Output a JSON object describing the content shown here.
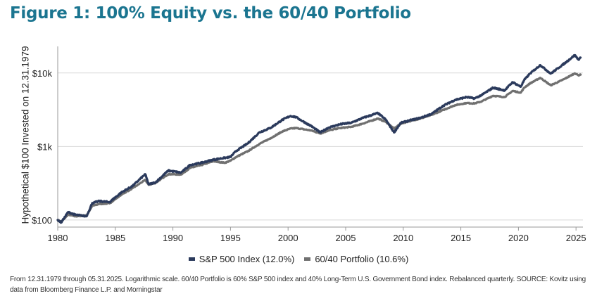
{
  "figure": {
    "title": "Figure 1: 100% Equity vs. the 60/40 Portfolio",
    "footnote": "From 12.31.1979 through 05.31.2025. Logarithmic scale. 60/40 Portfolio is 60% S&P 500 index and 40% Long-Term U.S. Government Bond index. Rebalanced quarterly. SOURCE: Kovitz using data from Bloomberg Finance L.P. and Morningstar"
  },
  "colors": {
    "sp500": "#2b3a5c",
    "sixty_forty": "#707070",
    "grid": "#d9d9d9",
    "title": "#1b7590"
  },
  "chart_data": {
    "type": "line",
    "title": "Figure 1: 100% Equity vs. the 60/40 Portfolio",
    "xlabel": "",
    "ylabel": "Hypothetical $100 Invested on 12.31.1979",
    "yscale": "log",
    "xlim": [
      1980,
      2025.6
    ],
    "ylim": [
      80,
      23000
    ],
    "xticks": [
      1980,
      1985,
      1990,
      1995,
      2000,
      2005,
      2010,
      2015,
      2020,
      2025
    ],
    "xtick_labels": [
      "1980",
      "1985",
      "1990",
      "1995",
      "2000",
      "2005",
      "2010",
      "2015",
      "2020",
      "2025"
    ],
    "yticks": [
      100,
      1000,
      10000
    ],
    "ytick_labels": [
      "$100",
      "$1k",
      "$10k"
    ],
    "legend": "bottom-center",
    "series": [
      {
        "name": "S&P 500 Index (12.0%)",
        "points": [
          [
            1980,
            100
          ],
          [
            1980.3,
            92
          ],
          [
            1980.9,
            128
          ],
          [
            1981.5,
            118
          ],
          [
            1982.5,
            112
          ],
          [
            1983.0,
            170
          ],
          [
            1983.6,
            180
          ],
          [
            1984.5,
            175
          ],
          [
            1985.5,
            235
          ],
          [
            1986.5,
            290
          ],
          [
            1987.6,
            420
          ],
          [
            1987.9,
            305
          ],
          [
            1988.5,
            325
          ],
          [
            1989.6,
            470
          ],
          [
            1990.7,
            440
          ],
          [
            1991.5,
            560
          ],
          [
            1992.5,
            600
          ],
          [
            1993.5,
            660
          ],
          [
            1994.5,
            700
          ],
          [
            1995.0,
            720
          ],
          [
            1995.5,
            870
          ],
          [
            1996.5,
            1100
          ],
          [
            1997.5,
            1550
          ],
          [
            1998.5,
            1800
          ],
          [
            1999.5,
            2300
          ],
          [
            2000.2,
            2600
          ],
          [
            2000.7,
            2500
          ],
          [
            2001.5,
            2100
          ],
          [
            2002.0,
            1900
          ],
          [
            2002.8,
            1550
          ],
          [
            2003.5,
            1800
          ],
          [
            2004.5,
            2000
          ],
          [
            2005.5,
            2100
          ],
          [
            2006.5,
            2450
          ],
          [
            2007.8,
            2850
          ],
          [
            2008.5,
            2300
          ],
          [
            2009.2,
            1550
          ],
          [
            2009.8,
            2100
          ],
          [
            2010.5,
            2250
          ],
          [
            2011.5,
            2450
          ],
          [
            2012.5,
            2800
          ],
          [
            2013.5,
            3600
          ],
          [
            2014.5,
            4300
          ],
          [
            2015.5,
            4700
          ],
          [
            2016.2,
            4500
          ],
          [
            2016.8,
            5000
          ],
          [
            2017.8,
            6300
          ],
          [
            2018.8,
            5800
          ],
          [
            2019.5,
            7500
          ],
          [
            2020.2,
            6500
          ],
          [
            2020.5,
            8000
          ],
          [
            2021.0,
            9800
          ],
          [
            2021.9,
            12800
          ],
          [
            2022.8,
            9800
          ],
          [
            2023.5,
            11800
          ],
          [
            2024.0,
            13500
          ],
          [
            2024.9,
            17500
          ],
          [
            2025.2,
            15200
          ],
          [
            2025.4,
            16200
          ]
        ]
      },
      {
        "name": "60/40 Portfolio (10.6%)",
        "points": [
          [
            1980,
            100
          ],
          [
            1980.3,
            94
          ],
          [
            1980.9,
            118
          ],
          [
            1981.5,
            112
          ],
          [
            1982.5,
            115
          ],
          [
            1983.0,
            155
          ],
          [
            1983.6,
            165
          ],
          [
            1984.5,
            168
          ],
          [
            1985.5,
            220
          ],
          [
            1986.5,
            270
          ],
          [
            1987.6,
            350
          ],
          [
            1987.9,
            300
          ],
          [
            1988.5,
            320
          ],
          [
            1989.6,
            420
          ],
          [
            1990.7,
            415
          ],
          [
            1991.5,
            510
          ],
          [
            1992.5,
            560
          ],
          [
            1993.5,
            630
          ],
          [
            1994.5,
            600
          ],
          [
            1995.0,
            640
          ],
          [
            1995.5,
            720
          ],
          [
            1996.5,
            860
          ],
          [
            1997.5,
            1080
          ],
          [
            1998.5,
            1300
          ],
          [
            1999.5,
            1600
          ],
          [
            2000.2,
            1750
          ],
          [
            2000.7,
            1780
          ],
          [
            2001.5,
            1700
          ],
          [
            2002.0,
            1650
          ],
          [
            2002.8,
            1500
          ],
          [
            2003.5,
            1650
          ],
          [
            2004.5,
            1780
          ],
          [
            2005.5,
            1850
          ],
          [
            2006.5,
            2050
          ],
          [
            2007.8,
            2400
          ],
          [
            2008.5,
            2150
          ],
          [
            2009.2,
            1750
          ],
          [
            2009.8,
            2050
          ],
          [
            2010.5,
            2200
          ],
          [
            2011.5,
            2400
          ],
          [
            2012.5,
            2700
          ],
          [
            2013.5,
            3150
          ],
          [
            2014.5,
            3650
          ],
          [
            2015.5,
            3900
          ],
          [
            2016.2,
            3850
          ],
          [
            2016.8,
            4100
          ],
          [
            2017.8,
            4900
          ],
          [
            2018.8,
            4700
          ],
          [
            2019.5,
            5700
          ],
          [
            2020.2,
            5400
          ],
          [
            2020.5,
            6300
          ],
          [
            2021.0,
            7200
          ],
          [
            2021.9,
            8600
          ],
          [
            2022.8,
            6800
          ],
          [
            2023.5,
            7600
          ],
          [
            2024.0,
            8300
          ],
          [
            2024.9,
            9900
          ],
          [
            2025.2,
            9300
          ],
          [
            2025.4,
            9500
          ]
        ]
      }
    ]
  }
}
